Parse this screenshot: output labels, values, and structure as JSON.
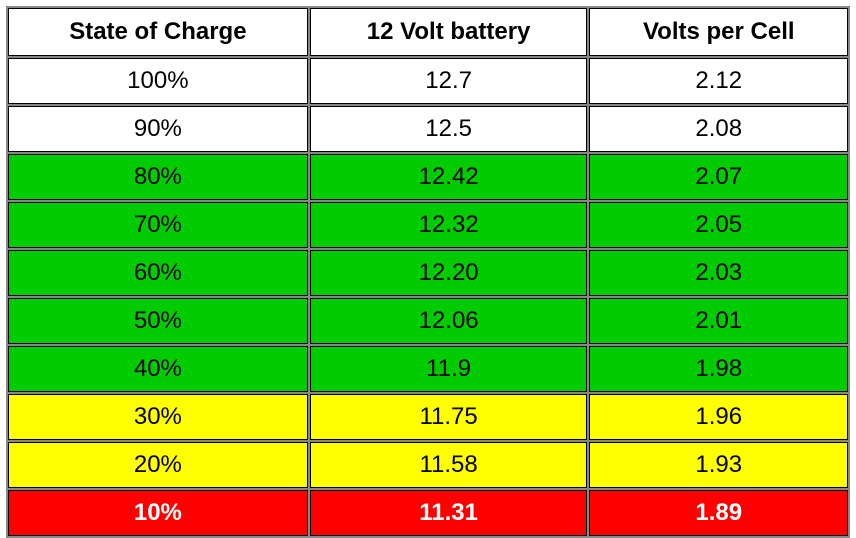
{
  "table": {
    "type": "table",
    "columns": [
      "State of Charge",
      "12 Volt battery",
      "Volts per Cell"
    ],
    "column_widths": [
      "33.3%",
      "33.3%",
      "33.4%"
    ],
    "header_bg": "#ffffff",
    "header_fontsize": 24,
    "header_fontweight": "bold",
    "cell_fontsize": 24,
    "border_color": "#000000",
    "spacing_color": "#888888",
    "row_colors": {
      "white": "#ffffff",
      "green": "#00cc00",
      "yellow": "#ffff00",
      "red": "#ff0000"
    },
    "red_text_color": "#ffffff",
    "rows": [
      {
        "state": "100%",
        "v12": "12.7",
        "vpc": "2.12",
        "color": "white"
      },
      {
        "state": "90%",
        "v12": "12.5",
        "vpc": "2.08",
        "color": "white"
      },
      {
        "state": "80%",
        "v12": "12.42",
        "vpc": "2.07",
        "color": "green"
      },
      {
        "state": "70%",
        "v12": "12.32",
        "vpc": "2.05",
        "color": "green"
      },
      {
        "state": "60%",
        "v12": "12.20",
        "vpc": "2.03",
        "color": "green"
      },
      {
        "state": "50%",
        "v12": "12.06",
        "vpc": "2.01",
        "color": "green"
      },
      {
        "state": "40%",
        "v12": "11.9",
        "vpc": "1.98",
        "color": "green"
      },
      {
        "state": "30%",
        "v12": "11.75",
        "vpc": "1.96",
        "color": "yellow"
      },
      {
        "state": "20%",
        "v12": "11.58",
        "vpc": "1.93",
        "color": "yellow"
      },
      {
        "state": "10%",
        "v12": "11.31",
        "vpc": "1.89",
        "color": "red"
      }
    ]
  }
}
